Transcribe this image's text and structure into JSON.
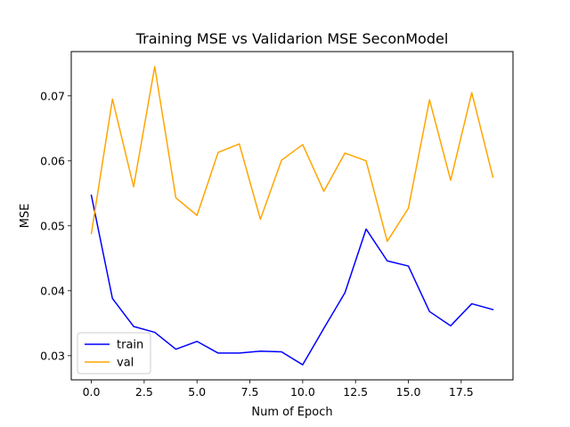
{
  "chart_data": {
    "type": "line",
    "title": "Training MSE vs Validarion MSE SeconModel",
    "xlabel": "Num of Epoch",
    "ylabel": "MSE",
    "x": [
      0,
      1,
      2,
      3,
      4,
      5,
      6,
      7,
      8,
      9,
      10,
      11,
      12,
      13,
      14,
      15,
      16,
      17,
      18,
      19
    ],
    "series": [
      {
        "name": "train",
        "color": "#0000ff",
        "values": [
          0.0547,
          0.0388,
          0.0345,
          0.0336,
          0.031,
          0.0322,
          0.0304,
          0.0304,
          0.0307,
          0.0306,
          0.0286,
          0.0342,
          0.0397,
          0.0495,
          0.0446,
          0.0438,
          0.0368,
          0.0346,
          0.038,
          0.0371
        ]
      },
      {
        "name": "val",
        "color": "#ffa500",
        "values": [
          0.0488,
          0.0695,
          0.056,
          0.0745,
          0.0543,
          0.0516,
          0.0613,
          0.0626,
          0.051,
          0.0601,
          0.0625,
          0.0553,
          0.0612,
          0.06,
          0.0476,
          0.0527,
          0.0694,
          0.057,
          0.0705,
          0.0575
        ]
      }
    ],
    "xlim": [
      -0.95,
      19.95
    ],
    "ylim": [
      0.02628,
      0.07682
    ],
    "xticks": [
      0,
      2.5,
      5,
      7.5,
      10,
      12.5,
      15,
      17.5
    ],
    "xtick_labels": [
      "0.0",
      "2.5",
      "5.0",
      "7.5",
      "10.0",
      "12.5",
      "15.0",
      "17.5"
    ],
    "yticks": [
      0.03,
      0.04,
      0.05,
      0.06,
      0.07
    ],
    "ytick_labels": [
      "0.03",
      "0.04",
      "0.05",
      "0.06",
      "0.07"
    ],
    "legend_position": "lower-left",
    "grid": false
  }
}
